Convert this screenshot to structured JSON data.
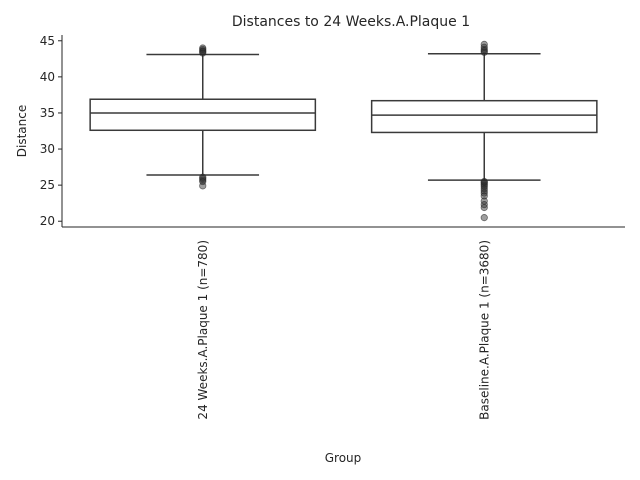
{
  "chart_data": {
    "type": "box",
    "title": "Distances to 24 Weeks.A.Plaque 1",
    "xlabel": "Group",
    "ylabel": "Distance",
    "ylim": [
      19.2,
      45.8
    ],
    "yticks": [
      20,
      25,
      30,
      35,
      40,
      45
    ],
    "grid": false,
    "categories": [
      "24 Weeks.A.Plaque 1 (n=780)",
      "Baseline.A.Plaque 1 (n=3680)"
    ],
    "boxes": [
      {
        "category": "24 Weeks.A.Plaque 1 (n=780)",
        "whisker_low": 26.4,
        "q1": 32.6,
        "median": 35.0,
        "q3": 36.9,
        "whisker_high": 43.1,
        "outliers": [
          24.9,
          25.5,
          25.7,
          25.9,
          26.1,
          43.3,
          43.5,
          43.6,
          43.8,
          44.0
        ]
      },
      {
        "category": "Baseline.A.Plaque 1 (n=3680)",
        "whisker_low": 25.7,
        "q1": 32.3,
        "median": 34.7,
        "q3": 36.7,
        "whisker_high": 43.2,
        "outliers": [
          20.5,
          21.9,
          22.3,
          22.8,
          23.5,
          23.9,
          24.2,
          24.5,
          24.8,
          25.0,
          25.2,
          25.4,
          25.5,
          43.4,
          43.6,
          43.8,
          44.1,
          44.5
        ]
      }
    ]
  }
}
